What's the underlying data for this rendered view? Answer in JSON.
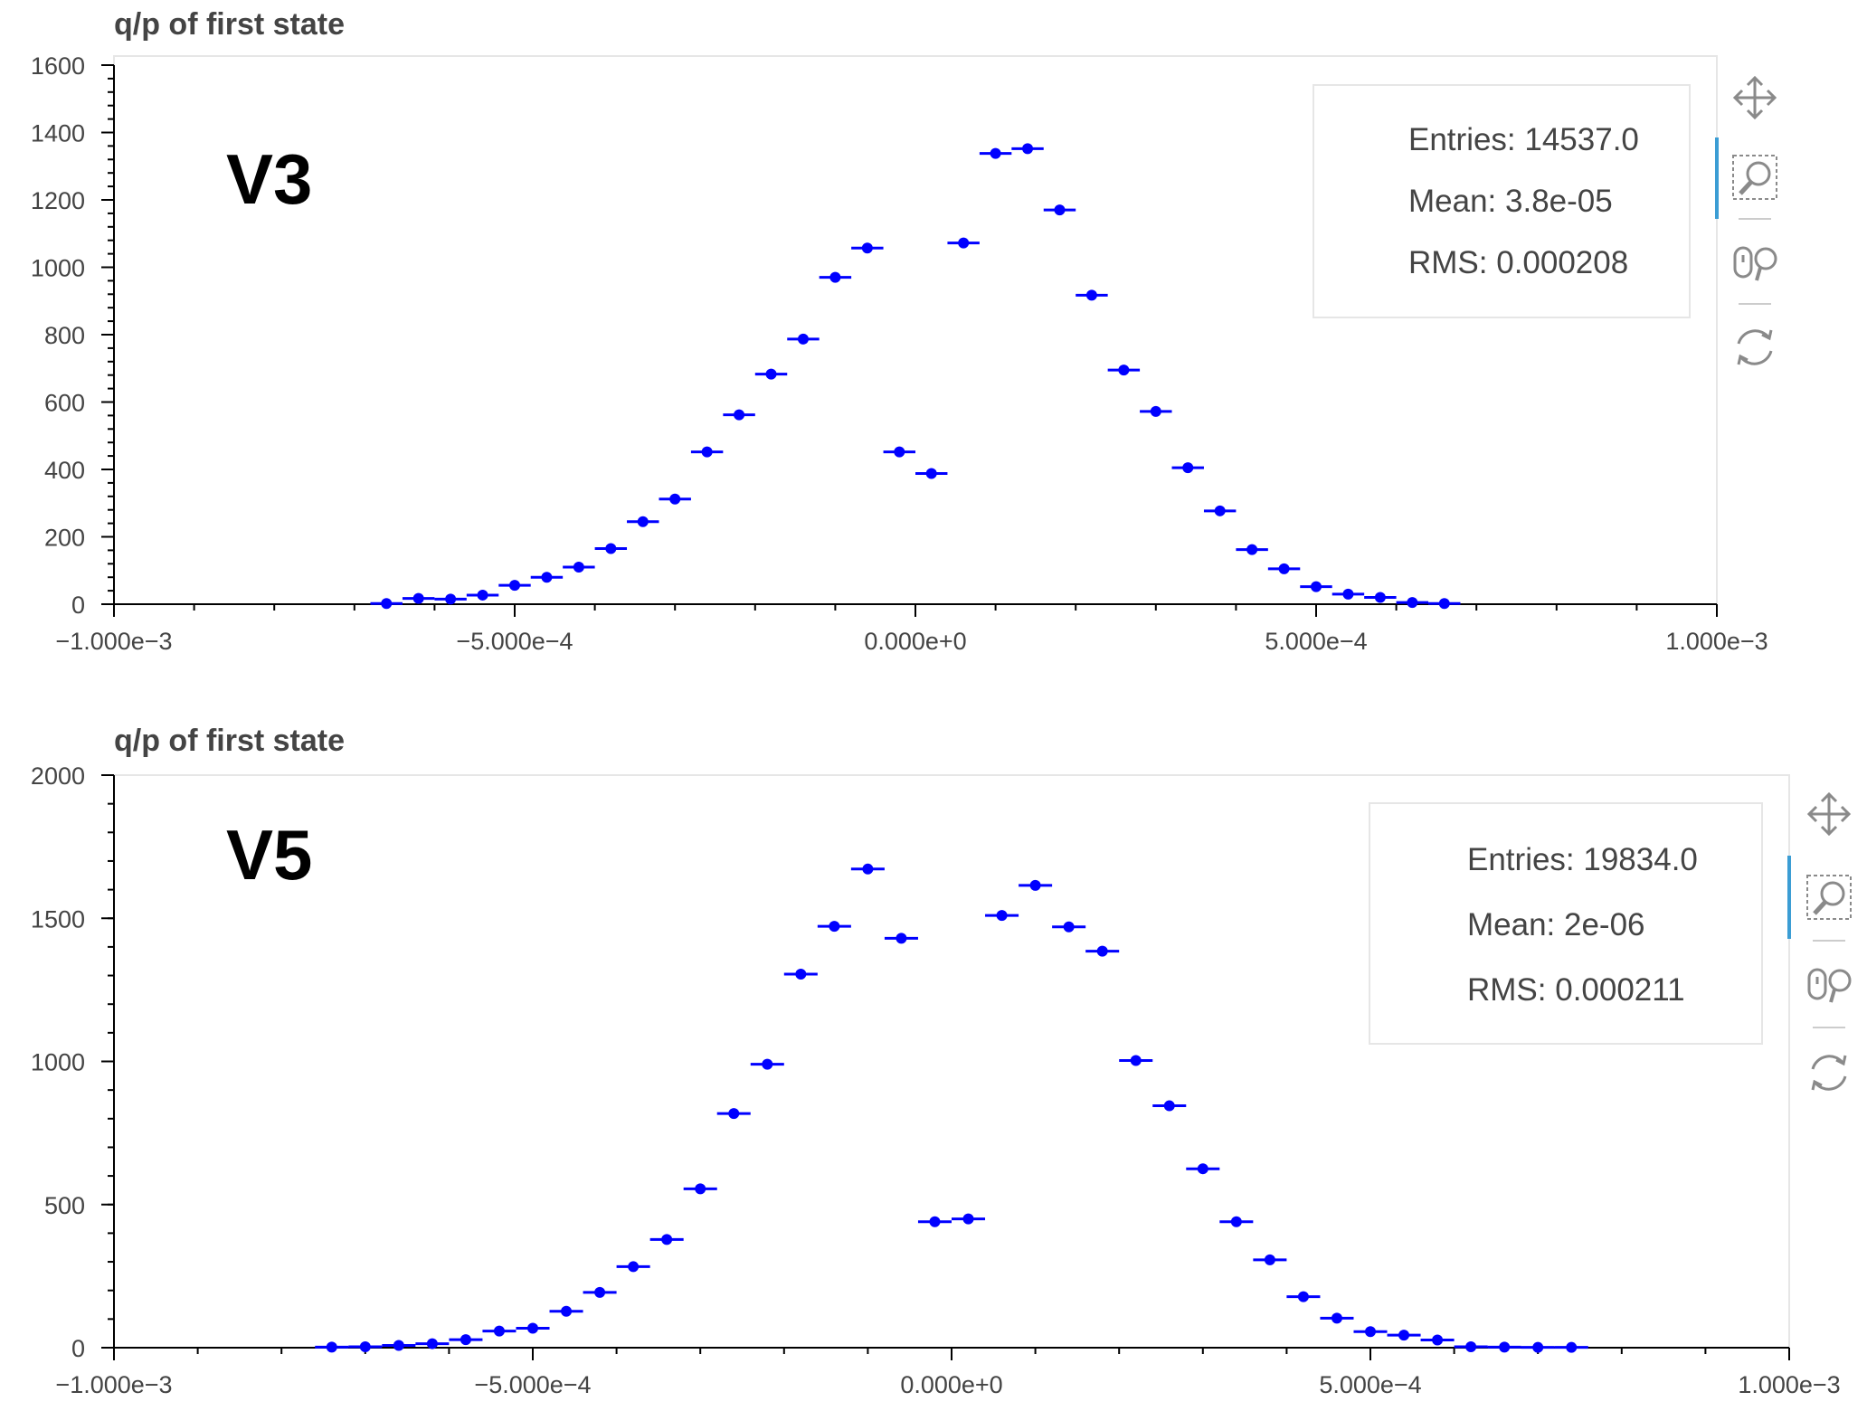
{
  "chart_data": [
    {
      "type": "scatter",
      "title": "q/p of first state",
      "version_label": "V3",
      "xlim": [
        -0.001,
        0.001
      ],
      "ylim": [
        0,
        1600
      ],
      "x_ticks": [
        -0.001,
        -0.0005,
        0,
        0.0005,
        0.001
      ],
      "x_tick_labels": [
        "−1.000e−3",
        "−5.000e−4",
        "0.000e+0",
        "5.000e−4",
        "1.000e−3"
      ],
      "y_ticks": [
        0,
        200,
        400,
        600,
        800,
        1000,
        1200,
        1400,
        1600
      ],
      "y_tick_labels": [
        "0",
        "200",
        "400",
        "600",
        "800",
        "1000",
        "1200",
        "1400",
        "1600"
      ],
      "bin_width": 4e-05,
      "points": [
        [
          -0.00066,
          2
        ],
        [
          -0.00062,
          17
        ],
        [
          -0.00058,
          15
        ],
        [
          -0.00054,
          27
        ],
        [
          -0.0005,
          56
        ],
        [
          -0.00046,
          80
        ],
        [
          -0.00042,
          110
        ],
        [
          -0.00038,
          165
        ],
        [
          -0.00034,
          245
        ],
        [
          -0.0003,
          312
        ],
        [
          -0.00026,
          452
        ],
        [
          -0.00022,
          562
        ],
        [
          -0.00018,
          683
        ],
        [
          -0.00014,
          787
        ],
        [
          -0.0001,
          970
        ],
        [
          -6e-05,
          1057
        ],
        [
          -2e-05,
          452
        ],
        [
          2e-05,
          388
        ],
        [
          6e-05,
          1072
        ],
        [
          0.0001,
          1338
        ],
        [
          0.00014,
          1352
        ],
        [
          0.00018,
          1170
        ],
        [
          0.00022,
          917
        ],
        [
          0.00026,
          695
        ],
        [
          0.0003,
          572
        ],
        [
          0.00034,
          405
        ],
        [
          0.00038,
          277
        ],
        [
          0.00042,
          162
        ],
        [
          0.00046,
          105
        ],
        [
          0.0005,
          52
        ],
        [
          0.00054,
          30
        ],
        [
          0.00058,
          20
        ],
        [
          0.00062,
          5
        ],
        [
          0.00066,
          2
        ]
      ],
      "marker_color": "#0000ff",
      "stats": {
        "entries": "Entries: 14537.0",
        "mean": "Mean: 3.8e-05",
        "rms": "RMS: 0.000208"
      }
    },
    {
      "type": "scatter",
      "title": "q/p of first state",
      "version_label": "V5",
      "xlim": [
        -0.001,
        0.001
      ],
      "ylim": [
        0,
        2000
      ],
      "x_ticks": [
        -0.001,
        -0.0005,
        0,
        0.0005,
        0.001
      ],
      "x_tick_labels": [
        "−1.000e−3",
        "−5.000e−4",
        "0.000e+0",
        "5.000e−4",
        "1.000e−3"
      ],
      "y_ticks": [
        0,
        500,
        1000,
        1500,
        2000
      ],
      "y_tick_labels": [
        "0",
        "500",
        "1000",
        "1500",
        "2000"
      ],
      "bin_width": 4e-05,
      "points": [
        [
          -0.00074,
          2
        ],
        [
          -0.0007,
          3
        ],
        [
          -0.00066,
          8
        ],
        [
          -0.00062,
          14
        ],
        [
          -0.00058,
          28
        ],
        [
          -0.00054,
          58
        ],
        [
          -0.0005,
          68
        ],
        [
          -0.00046,
          127
        ],
        [
          -0.00042,
          193
        ],
        [
          -0.00038,
          283
        ],
        [
          -0.00034,
          378
        ],
        [
          -0.0003,
          555
        ],
        [
          -0.00026,
          818
        ],
        [
          -0.00022,
          990
        ],
        [
          -0.00018,
          1305
        ],
        [
          -0.00014,
          1472
        ],
        [
          -0.0001,
          1672
        ],
        [
          -6e-05,
          1430
        ],
        [
          -2e-05,
          440
        ],
        [
          2e-05,
          450
        ],
        [
          6e-05,
          1510
        ],
        [
          0.0001,
          1615
        ],
        [
          0.00014,
          1470
        ],
        [
          0.00018,
          1385
        ],
        [
          0.00022,
          1003
        ],
        [
          0.00026,
          845
        ],
        [
          0.0003,
          625
        ],
        [
          0.00034,
          440
        ],
        [
          0.00038,
          307
        ],
        [
          0.00042,
          178
        ],
        [
          0.00046,
          103
        ],
        [
          0.0005,
          56
        ],
        [
          0.00054,
          44
        ],
        [
          0.00058,
          27
        ],
        [
          0.00062,
          3
        ],
        [
          0.00066,
          2
        ],
        [
          0.0007,
          1
        ],
        [
          0.00074,
          1
        ]
      ],
      "marker_color": "#0000ff",
      "stats": {
        "entries": "Entries: 19834.0",
        "mean": "Mean: 2e-06",
        "rms": "RMS: 0.000211"
      }
    }
  ],
  "toolbar": {
    "icons": [
      "pan-icon",
      "box-zoom-icon",
      "wheel-zoom-icon",
      "reset-icon"
    ],
    "active_color": "#3b9dd4",
    "icon_color": "#8a8a8a"
  }
}
